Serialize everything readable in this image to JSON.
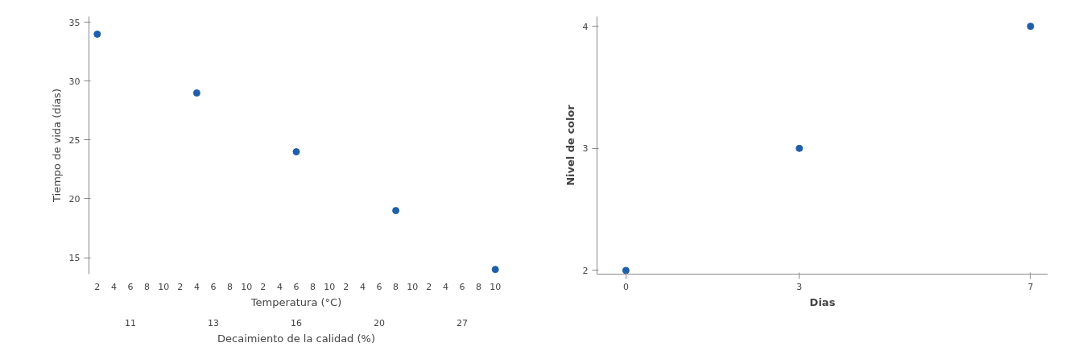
{
  "chart_data": [
    {
      "type": "scatter",
      "ylabel": "Tiempo de vida (días)",
      "xlabel": "Temperatura (°C)",
      "categories": [
        "2",
        "4",
        "6",
        "8",
        "10",
        "2",
        "4",
        "6",
        "8",
        "10",
        "2",
        "4",
        "6",
        "8",
        "10",
        "2",
        "4",
        "6",
        "8",
        "10",
        "2",
        "4",
        "6",
        "8",
        "10"
      ],
      "annotations": [
        "Decaimiento de la calidad (%)",
        "11",
        "13",
        "16",
        "20",
        "27"
      ],
      "series": [
        {
          "color": "#1f5fa8",
          "values": [
            34,
            null,
            null,
            null,
            null,
            null,
            29,
            null,
            null,
            null,
            null,
            null,
            24,
            null,
            null,
            null,
            null,
            null,
            19,
            null,
            null,
            null,
            null,
            null,
            14
          ]
        }
      ],
      "ylim": [
        13.6,
        35.5
      ],
      "yticks": [
        15,
        20,
        25,
        30,
        35
      ],
      "marker": "circle",
      "grid": false
    },
    {
      "type": "scatter",
      "xlabel": "Dias",
      "ylabel": "Nivel de color",
      "x": [
        0,
        3,
        7
      ],
      "series": [
        {
          "color": "#1f5fa8",
          "values": [
            2,
            3,
            4
          ]
        }
      ],
      "xlim": [
        -0.5,
        7.3
      ],
      "xticks": [
        0,
        3,
        7
      ],
      "ylim": [
        1.97,
        4.08
      ],
      "yticks": [
        2,
        3,
        4
      ],
      "marker": "circle",
      "grid": false
    }
  ]
}
